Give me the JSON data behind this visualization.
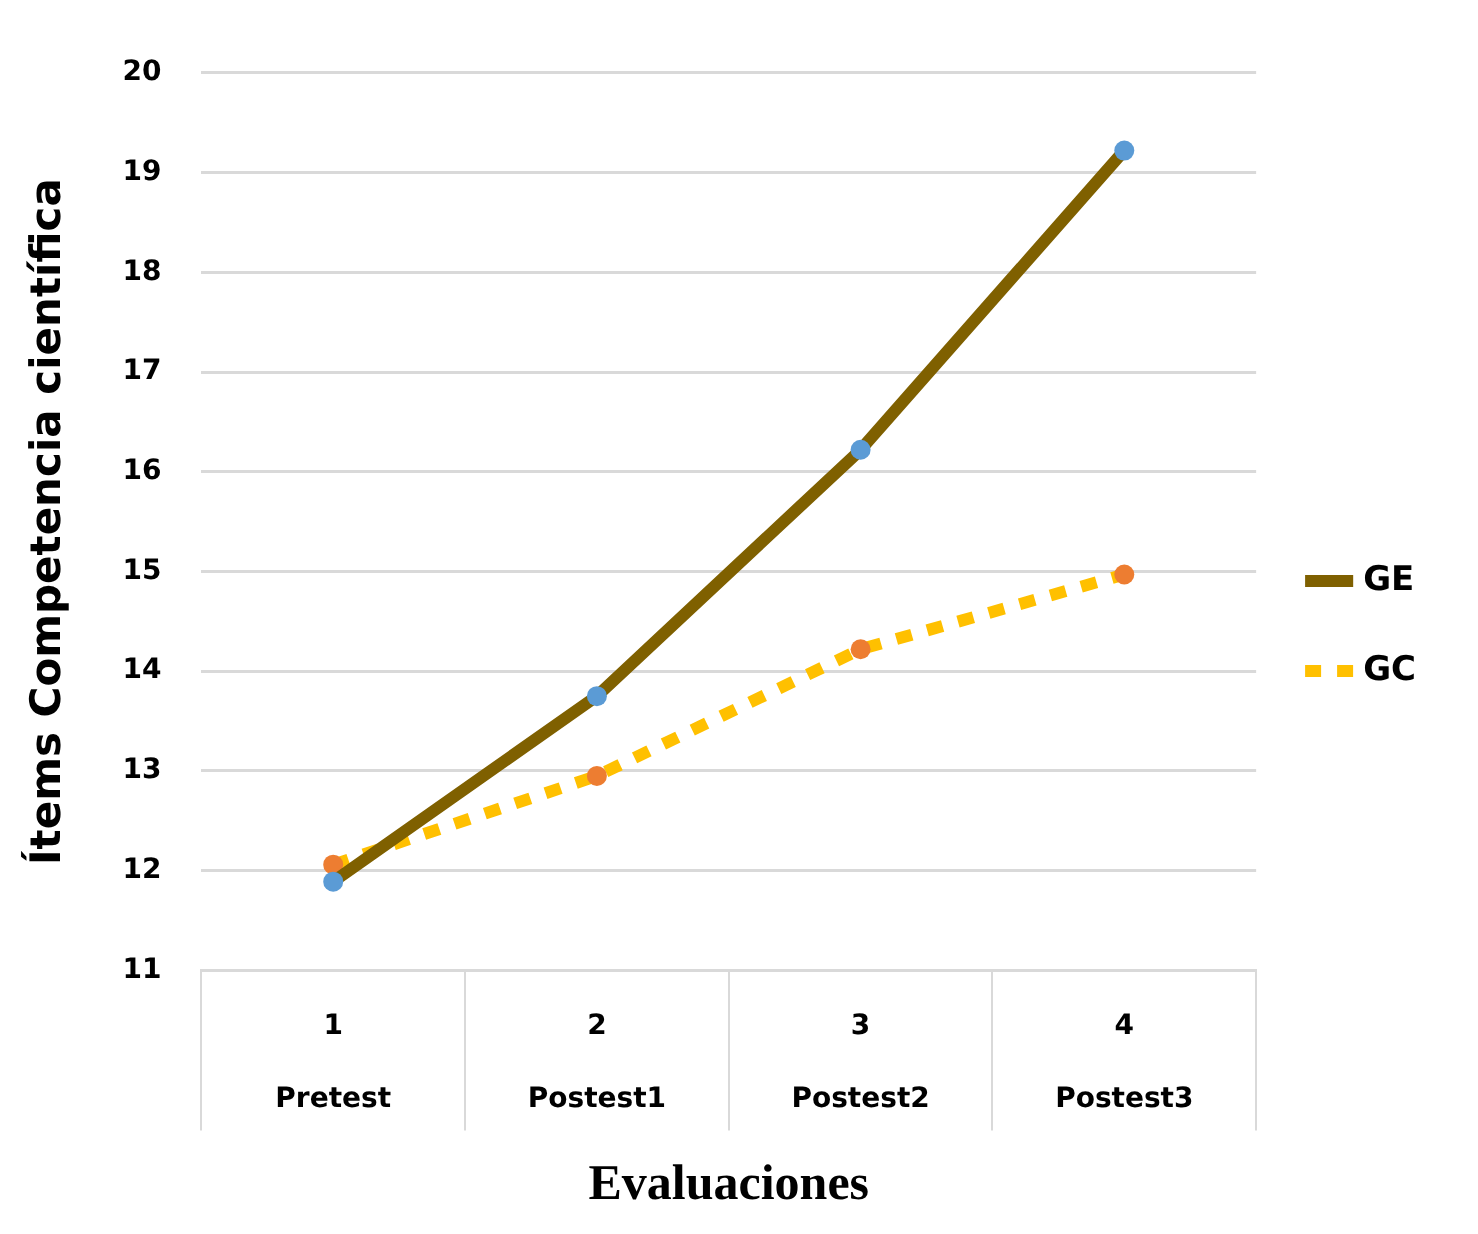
{
  "chart_data": {
    "type": "line",
    "xlabel": "Evaluaciones",
    "ylabel": "Ítems Competencia científica",
    "categories": [
      "1\nPretest",
      "2\nPostest1",
      "3\nPostest2",
      "4\nPostest3"
    ],
    "series": [
      {
        "name": "GE",
        "color": "#7f6000",
        "colors": [
          "#5b9bd5",
          "#5b9bd5",
          "#5b9bd5",
          "#5b9bd5"
        ],
        "values": [
          11.89,
          13.75,
          16.22,
          19.22
        ],
        "line_style": "solid"
      },
      {
        "name": "GC",
        "color": "#ffc000",
        "colors": [
          "#ed7d31",
          "#ed7d31",
          "#ed7d31",
          "#ed7d31"
        ],
        "values": [
          12.06,
          12.95,
          14.22,
          14.97
        ],
        "line_style": "dotted"
      }
    ],
    "ylim": [
      11,
      20
    ],
    "yticks": [
      11,
      12,
      13,
      14,
      15,
      16,
      17,
      18,
      19,
      20
    ],
    "grid": "y",
    "legend": "right",
    "marker": "circle"
  }
}
